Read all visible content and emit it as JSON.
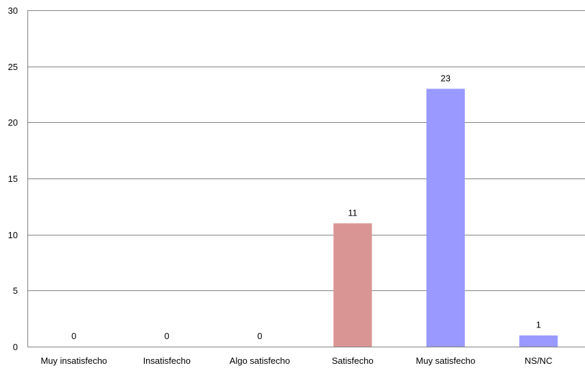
{
  "chart_data": {
    "type": "bar",
    "title": "",
    "xlabel": "",
    "ylabel": "",
    "categories": [
      "Muy insatisfecho",
      "Insatisfecho",
      "Algo satisfecho",
      "Satisfecho",
      "Muy satisfecho",
      "NS/NC"
    ],
    "values": [
      0,
      0,
      0,
      11,
      23,
      1
    ],
    "data_labels": [
      "0",
      "0",
      "0",
      "11",
      "23",
      "1"
    ],
    "bar_colors": [
      "#9999ff",
      "#9999ff",
      "#9999ff",
      "#d99594",
      "#9999ff",
      "#9999ff"
    ],
    "ylim": [
      0,
      30
    ],
    "yticks": [
      0,
      5,
      10,
      15,
      20,
      25,
      30
    ],
    "ytick_labels": [
      "0",
      "5",
      "10",
      "15",
      "20",
      "25",
      "30"
    ],
    "grid": true,
    "gridline_color": "#808080",
    "legend": "none"
  }
}
